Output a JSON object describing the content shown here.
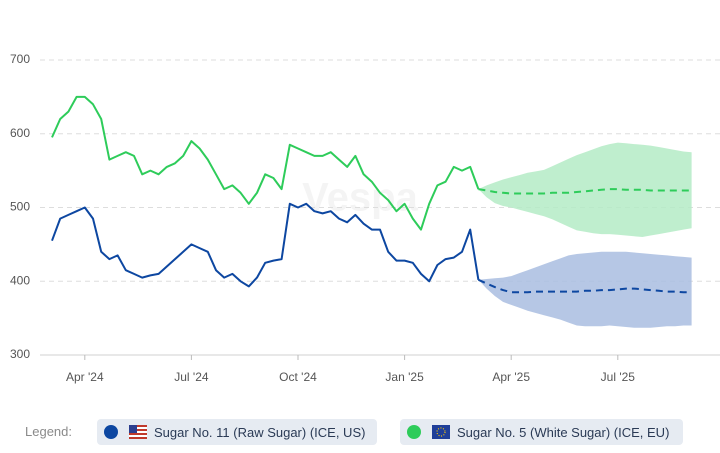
{
  "chart_data": {
    "type": "line",
    "watermark": "Vespa",
    "legend_title": "Legend:",
    "categories": [
      null,
      null,
      null,
      null,
      "Apr '24",
      null,
      null,
      null,
      null,
      null,
      null,
      null,
      null,
      null,
      null,
      null,
      null,
      "Jul '24",
      null,
      null,
      null,
      null,
      null,
      null,
      null,
      null,
      null,
      null,
      null,
      null,
      "Oct '24",
      null,
      null,
      null,
      null,
      null,
      null,
      null,
      null,
      null,
      null,
      null,
      null,
      "Jan '25",
      null,
      null,
      null,
      null,
      null,
      null,
      null,
      null,
      null,
      null,
      null,
      null,
      "Apr '25",
      null,
      null,
      null,
      null,
      null,
      null,
      null,
      null,
      null,
      null,
      null,
      null,
      "Jul '25",
      null,
      null,
      null,
      null,
      null,
      null,
      null,
      null,
      null
    ],
    "ylim": [
      300,
      700
    ],
    "yticks": [
      300,
      400,
      500,
      600,
      700
    ],
    "grid": true,
    "series": [
      {
        "name": "Sugar No. 11 (Raw Sugar) (ICE, US)",
        "color": "#0d47a1",
        "band_color": "#a9bde0",
        "values": [
          455,
          485,
          490,
          495,
          500,
          485,
          440,
          430,
          435,
          415,
          410,
          405,
          408,
          410,
          420,
          430,
          440,
          450,
          445,
          440,
          415,
          405,
          410,
          400,
          393,
          405,
          425,
          428,
          430,
          505,
          500,
          505,
          495,
          492,
          495,
          485,
          480,
          490,
          478,
          470,
          470,
          440,
          428,
          428,
          425,
          410,
          400,
          422,
          430,
          432,
          440,
          470,
          402,
          null,
          null,
          null,
          null,
          null,
          null,
          null,
          null,
          null,
          null,
          null,
          null,
          null,
          null,
          null,
          null,
          null,
          null,
          null,
          null,
          null,
          null,
          null,
          null,
          null,
          null
        ],
        "forecast": [
          null,
          null,
          null,
          null,
          null,
          null,
          null,
          null,
          null,
          null,
          null,
          null,
          null,
          null,
          null,
          null,
          null,
          null,
          null,
          null,
          null,
          null,
          null,
          null,
          null,
          null,
          null,
          null,
          null,
          null,
          null,
          null,
          null,
          null,
          null,
          null,
          null,
          null,
          null,
          null,
          null,
          null,
          null,
          null,
          null,
          null,
          null,
          null,
          null,
          null,
          null,
          null,
          402,
          397,
          392,
          388,
          385,
          385,
          385,
          386,
          386,
          386,
          386,
          386,
          386,
          387,
          387,
          388,
          388,
          389,
          390,
          390,
          389,
          388,
          387,
          386,
          386,
          385,
          385
        ],
        "upper": [
          null,
          null,
          null,
          null,
          null,
          null,
          null,
          null,
          null,
          null,
          null,
          null,
          null,
          null,
          null,
          null,
          null,
          null,
          null,
          null,
          null,
          null,
          null,
          null,
          null,
          null,
          null,
          null,
          null,
          null,
          null,
          null,
          null,
          null,
          null,
          null,
          null,
          null,
          null,
          null,
          null,
          null,
          null,
          null,
          null,
          null,
          null,
          null,
          null,
          null,
          null,
          null,
          402,
          403,
          404,
          405,
          407,
          411,
          415,
          419,
          423,
          427,
          431,
          435,
          437,
          438,
          439,
          440,
          440,
          440,
          440,
          439,
          438,
          437,
          436,
          435,
          434,
          433,
          432
        ],
        "lower": [
          null,
          null,
          null,
          null,
          null,
          null,
          null,
          null,
          null,
          null,
          null,
          null,
          null,
          null,
          null,
          null,
          null,
          null,
          null,
          null,
          null,
          null,
          null,
          null,
          null,
          null,
          null,
          null,
          null,
          null,
          null,
          null,
          null,
          null,
          null,
          null,
          null,
          null,
          null,
          null,
          null,
          null,
          null,
          null,
          null,
          null,
          null,
          null,
          null,
          null,
          null,
          null,
          402,
          390,
          380,
          372,
          368,
          364,
          360,
          357,
          354,
          351,
          348,
          344,
          340,
          339,
          339,
          339,
          340,
          339,
          338,
          337,
          337,
          337,
          338,
          339,
          339,
          340,
          340
        ]
      },
      {
        "name": "Sugar No. 5 (White Sugar) (ICE, EU)",
        "color": "#2ecc5a",
        "band_color": "#b4ebc6",
        "values": [
          595,
          620,
          630,
          650,
          650,
          640,
          620,
          565,
          570,
          575,
          570,
          545,
          550,
          545,
          555,
          560,
          570,
          590,
          580,
          565,
          545,
          525,
          530,
          520,
          505,
          520,
          545,
          540,
          525,
          585,
          580,
          575,
          570,
          570,
          575,
          565,
          555,
          570,
          545,
          535,
          520,
          510,
          495,
          505,
          485,
          470,
          505,
          530,
          535,
          555,
          550,
          555,
          525,
          null,
          null,
          null,
          null,
          null,
          null,
          null,
          null,
          null,
          null,
          null,
          null,
          null,
          null,
          null,
          null,
          null,
          null,
          null,
          null,
          null,
          null,
          null,
          null,
          null,
          null
        ],
        "forecast": [
          null,
          null,
          null,
          null,
          null,
          null,
          null,
          null,
          null,
          null,
          null,
          null,
          null,
          null,
          null,
          null,
          null,
          null,
          null,
          null,
          null,
          null,
          null,
          null,
          null,
          null,
          null,
          null,
          null,
          null,
          null,
          null,
          null,
          null,
          null,
          null,
          null,
          null,
          null,
          null,
          null,
          null,
          null,
          null,
          null,
          null,
          null,
          null,
          null,
          null,
          null,
          null,
          525,
          523,
          521,
          520,
          519,
          519,
          519,
          519,
          519,
          520,
          520,
          520,
          521,
          522,
          523,
          524,
          525,
          525,
          524,
          524,
          524,
          523,
          523,
          523,
          523,
          523,
          523
        ],
        "upper": [
          null,
          null,
          null,
          null,
          null,
          null,
          null,
          null,
          null,
          null,
          null,
          null,
          null,
          null,
          null,
          null,
          null,
          null,
          null,
          null,
          null,
          null,
          null,
          null,
          null,
          null,
          null,
          null,
          null,
          null,
          null,
          null,
          null,
          null,
          null,
          null,
          null,
          null,
          null,
          null,
          null,
          null,
          null,
          null,
          null,
          null,
          null,
          null,
          null,
          null,
          null,
          null,
          525,
          530,
          534,
          538,
          541,
          544,
          547,
          549,
          551,
          556,
          561,
          566,
          571,
          575,
          579,
          583,
          586,
          588,
          587,
          586,
          585,
          584,
          582,
          580,
          578,
          576,
          575
        ],
        "lower": [
          null,
          null,
          null,
          null,
          null,
          null,
          null,
          null,
          null,
          null,
          null,
          null,
          null,
          null,
          null,
          null,
          null,
          null,
          null,
          null,
          null,
          null,
          null,
          null,
          null,
          null,
          null,
          null,
          null,
          null,
          null,
          null,
          null,
          null,
          null,
          null,
          null,
          null,
          null,
          null,
          null,
          null,
          null,
          null,
          null,
          null,
          null,
          null,
          null,
          null,
          null,
          null,
          525,
          514,
          506,
          502,
          500,
          497,
          494,
          491,
          488,
          484,
          479,
          474,
          469,
          467,
          465,
          464,
          464,
          463,
          462,
          461,
          460,
          462,
          464,
          466,
          468,
          470,
          472
        ]
      }
    ]
  }
}
